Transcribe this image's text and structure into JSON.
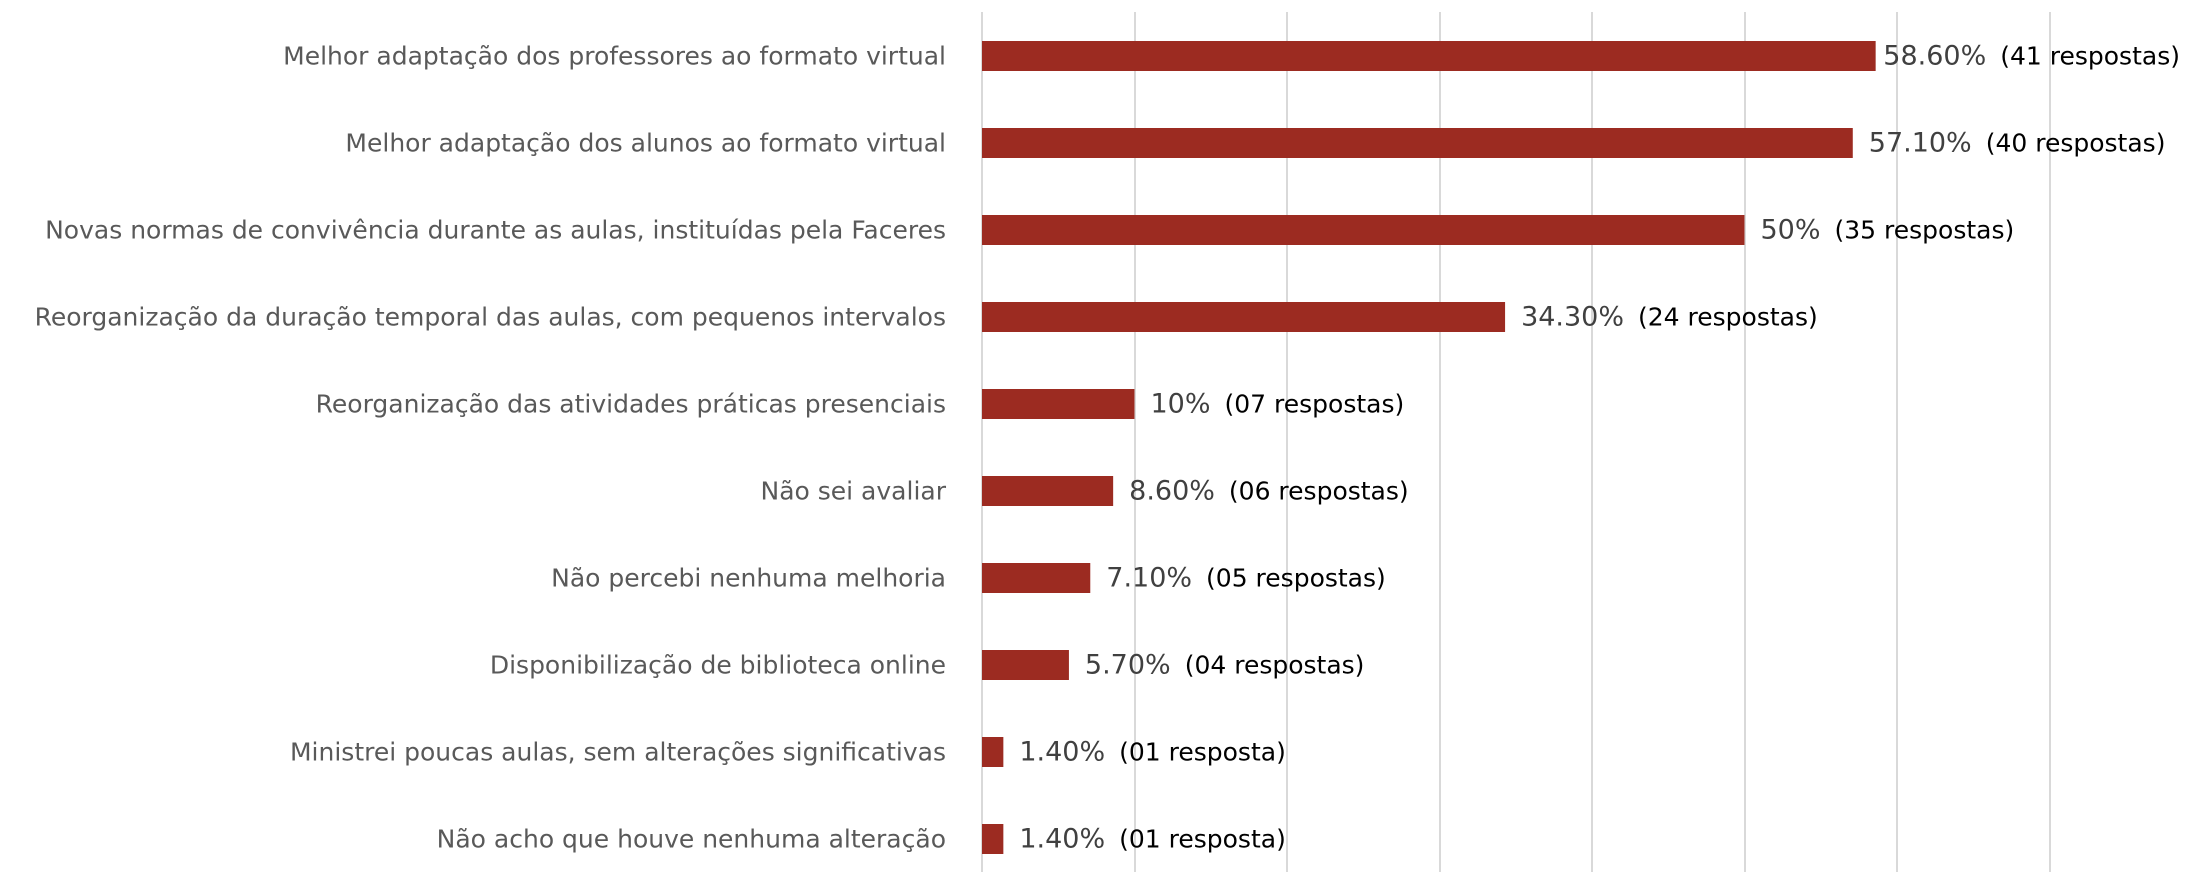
{
  "chart_data": {
    "type": "bar",
    "orientation": "horizontal",
    "categories": [
      "Melhor adaptação dos professores ao formato virtual",
      "Melhor adaptação dos alunos ao formato virtual",
      "Novas normas de convivência durante as aulas, instituídas pela Faceres",
      "Reorganização da duração temporal das aulas, com pequenos intervalos",
      "Reorganização das atividades práticas presenciais",
      "Não sei avaliar",
      "Não percebi nenhuma melhoria",
      "Disponibilização de biblioteca online",
      "Ministrei poucas aulas, sem alterações significativas",
      "Não acho que houve nenhuma alteração"
    ],
    "values": [
      58.6,
      57.1,
      50,
      34.3,
      10,
      8.6,
      7.1,
      5.7,
      1.4,
      1.4
    ],
    "value_labels": [
      "58.60%",
      "57.10%",
      "50%",
      "34.30%",
      "10%",
      "8.60%",
      "7.10%",
      "5.70%",
      "1.40%",
      "1.40%"
    ],
    "response_labels": [
      "(41 respostas)",
      "(40 respostas)",
      "(35 respostas)",
      "(24  respostas)",
      "(07 respostas)",
      "(06 respostas)",
      "(05 respostas)",
      "(04 respostas)",
      "(01 resposta)",
      "(01 resposta)"
    ],
    "xlim": [
      0,
      80
    ],
    "grid": true,
    "bar_color": "#9c2b21",
    "grid_color": "#d9d9d9"
  }
}
